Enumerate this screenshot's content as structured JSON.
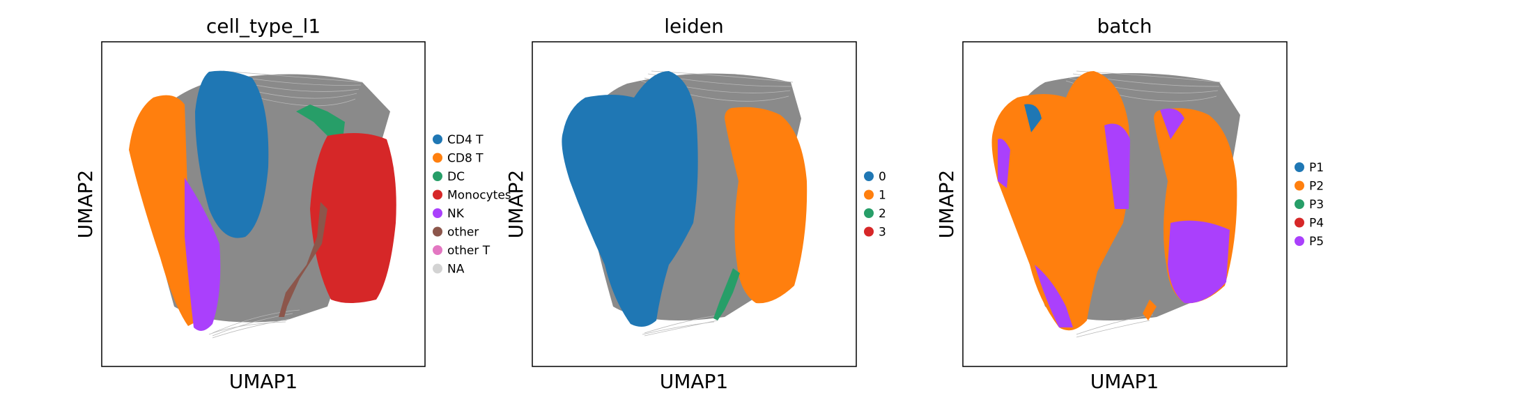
{
  "chart_data": [
    {
      "type": "scatter",
      "title": "cell_type_l1",
      "xlabel": "UMAP1",
      "ylabel": "UMAP2",
      "grid": false,
      "ticks": false,
      "legend_placement": "right",
      "legend": [
        {
          "label": "CD4 T",
          "color": "#1f77b4"
        },
        {
          "label": "CD8 T",
          "color": "#ff7f0e"
        },
        {
          "label": "DC",
          "color": "#279e68"
        },
        {
          "label": "Monocytes",
          "color": "#d62728"
        },
        {
          "label": "NK",
          "color": "#aa40fc"
        },
        {
          "label": "other",
          "color": "#8c564b"
        },
        {
          "label": "other T",
          "color": "#e377c2"
        },
        {
          "label": "NA",
          "color": "#d3d3d3"
        }
      ]
    },
    {
      "type": "scatter",
      "title": "leiden",
      "xlabel": "UMAP1",
      "ylabel": "UMAP2",
      "grid": false,
      "ticks": false,
      "legend_placement": "right",
      "legend": [
        {
          "label": "0",
          "color": "#1f77b4"
        },
        {
          "label": "1",
          "color": "#ff7f0e"
        },
        {
          "label": "2",
          "color": "#279e68"
        },
        {
          "label": "3",
          "color": "#d62728"
        }
      ]
    },
    {
      "type": "scatter",
      "title": "batch",
      "xlabel": "UMAP1",
      "ylabel": "UMAP2",
      "grid": false,
      "ticks": false,
      "legend_placement": "right",
      "legend": [
        {
          "label": "P1",
          "color": "#1f77b4"
        },
        {
          "label": "P2",
          "color": "#ff7f0e"
        },
        {
          "label": "P3",
          "color": "#279e68"
        },
        {
          "label": "P4",
          "color": "#d62728"
        },
        {
          "label": "P5",
          "color": "#aa40fc"
        }
      ]
    }
  ]
}
